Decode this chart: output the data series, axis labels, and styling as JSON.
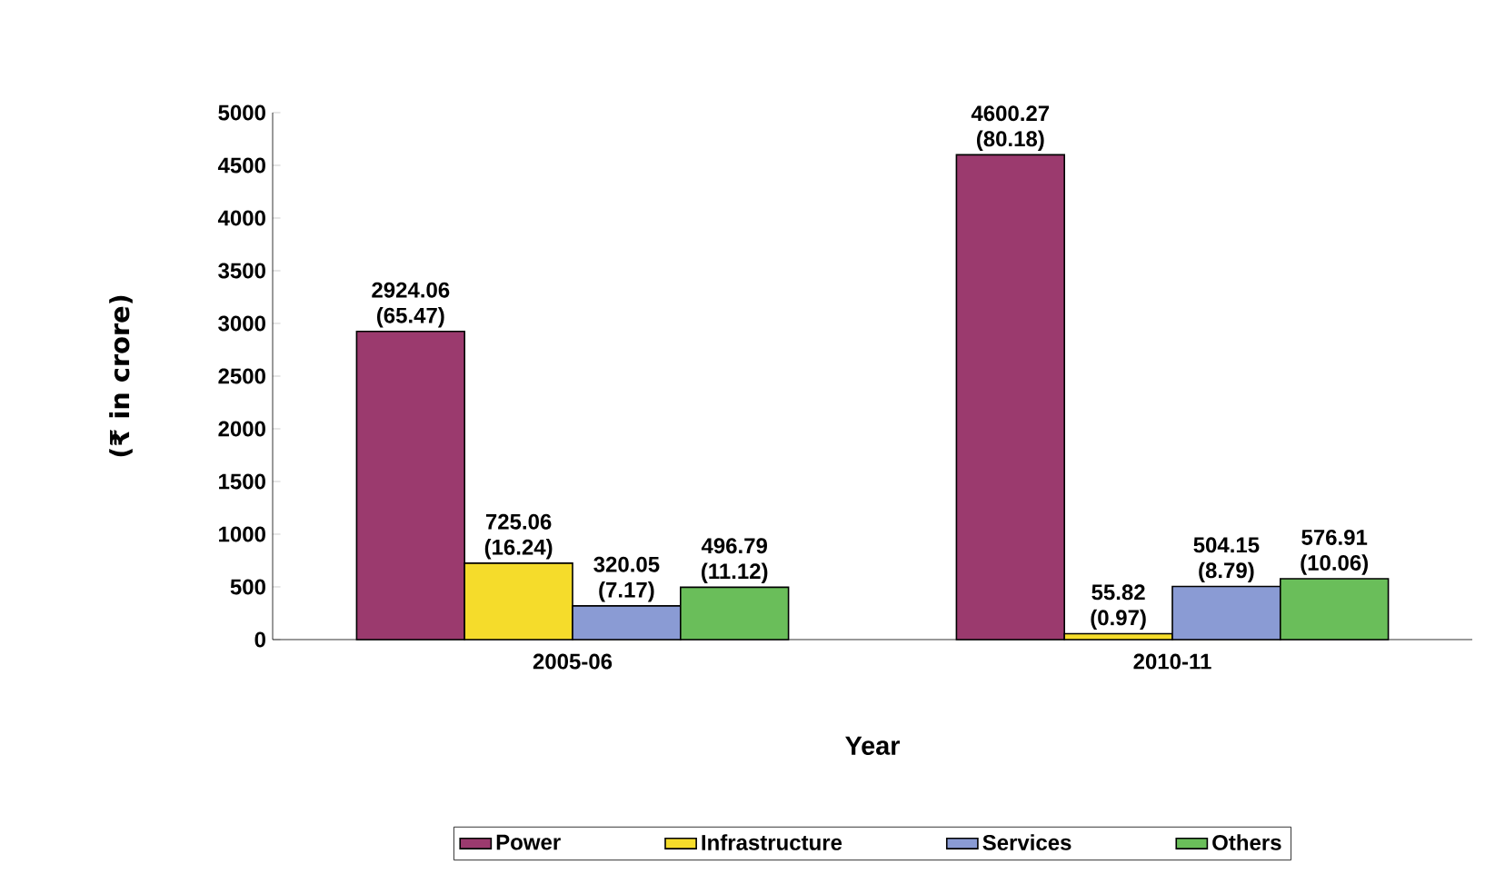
{
  "chart_data": {
    "type": "bar",
    "xlabel": "Year",
    "ylabel": "(₹ in crore)",
    "categories": [
      "2005-06",
      "2010-11"
    ],
    "series": [
      {
        "name": "Power",
        "color": "#9b3a6e",
        "values": [
          2924.06,
          4600.27
        ],
        "value_labels": [
          "2924.06 (65.47)",
          "4600.27 (80.18)"
        ]
      },
      {
        "name": "Infrastructure",
        "color": "#f5dc2b",
        "values": [
          725.06,
          55.82
        ],
        "value_labels": [
          "725.06 (16.24)",
          "55.82 (0.97)"
        ]
      },
      {
        "name": "Services",
        "color": "#8a9bd4",
        "values": [
          320.05,
          504.15
        ],
        "value_labels": [
          "320.05 (7.17)",
          "504.15 (8.79)"
        ]
      },
      {
        "name": "Others",
        "color": "#6abe5a",
        "values": [
          496.79,
          576.91
        ],
        "value_labels": [
          "496.79 (11.12)",
          "576.91 (10.06)"
        ]
      }
    ],
    "ylim": [
      0,
      5000
    ],
    "yticks": [
      0,
      500,
      1000,
      1500,
      2000,
      2500,
      3000,
      3500,
      4000,
      4500,
      5000
    ],
    "grid": false,
    "legend": "bottom"
  }
}
